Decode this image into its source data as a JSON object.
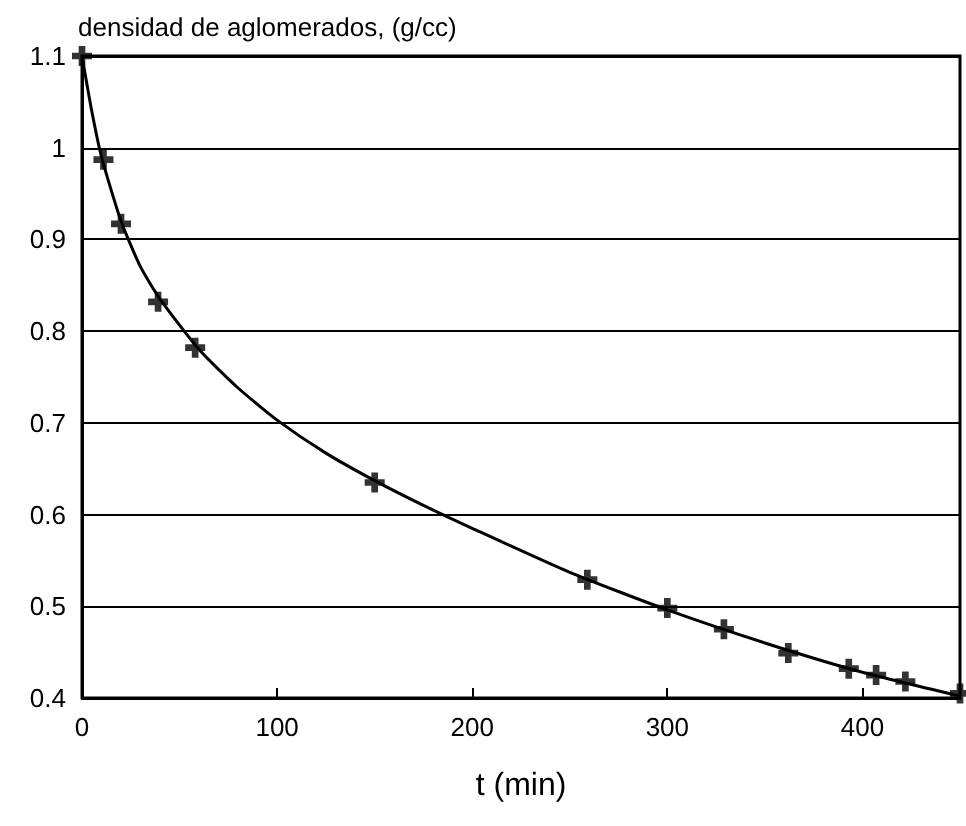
{
  "chart_data": {
    "type": "scatter",
    "ylabel": "densidad de aglomerados, (g/cc)",
    "xlabel": "t (min)",
    "series": [
      {
        "color": "#000000",
        "marker": "cross",
        "x": [
          0,
          11,
          20,
          39,
          58,
          150,
          259,
          300,
          329,
          362,
          393,
          407,
          422,
          450
        ],
        "values": [
          1.1,
          0.987,
          0.917,
          0.832,
          0.782,
          0.635,
          0.529,
          0.498,
          0.475,
          0.449,
          0.432,
          0.425,
          0.418,
          0.405
        ]
      },
      {
        "type": "line",
        "color": "#000000",
        "marker": "none",
        "line_style": "solid",
        "x": [
          0,
          5,
          10,
          20,
          30,
          40,
          60,
          80,
          100,
          125,
          150,
          175,
          200,
          250,
          300,
          350,
          400,
          450
        ],
        "values": [
          1.1,
          1.04,
          0.99,
          0.92,
          0.87,
          0.835,
          0.78,
          0.738,
          0.703,
          0.667,
          0.637,
          0.61,
          0.585,
          0.537,
          0.496,
          0.46,
          0.428,
          0.402
        ]
      }
    ],
    "xlim": [
      0,
      450
    ],
    "xticks": [
      0,
      100,
      200,
      300,
      400
    ],
    "ylim": [
      0.4,
      1.1
    ],
    "yticks": [
      0.4,
      0.5,
      0.6,
      0.7,
      0.8,
      0.9,
      1,
      1.1
    ],
    "grid": "y"
  }
}
